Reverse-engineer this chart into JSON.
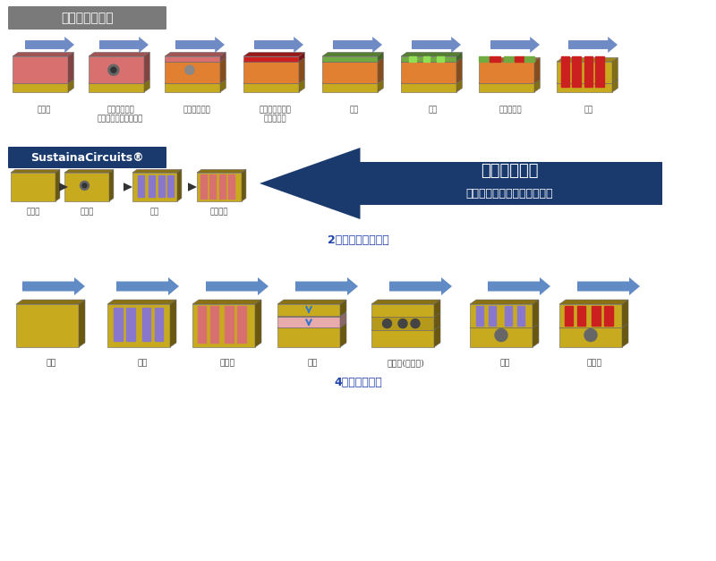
{
  "title_traditional": "既存の基板製法",
  "title_2layer": "2層基板の製法比較",
  "title_4layer": "4層基板の製法",
  "sustaina_label": "SustainaCircuits®",
  "short_process_line1": "短いプロセス",
  "short_process_line2": "工程や材料、設備を大幅削減",
  "traditional_steps": [
    "穴あけ",
    "導電下地形成\n（無電解銅めっき等）",
    "電解銅めっき",
    "ドライフィルム\nラミネート",
    "露光",
    "現像",
    "エッチング",
    "剥離"
  ],
  "sustaina_steps_2layer": [
    "穴あけ",
    "印刷",
    "銅めっき"
  ],
  "steps_4layer": [
    "基材",
    "印刷",
    "めっき",
    "積層",
    "ドリル(穴あけ)",
    "印刷",
    "めっき"
  ],
  "bg_color": "#ffffff",
  "title_bg_color": "#7a7a7a",
  "title_text_color": "#ffffff",
  "sustaina_bg_color": "#1a3a6e",
  "big_arrow_color": "#1a3a6e",
  "step_label_color": "#444444",
  "title_2layer_color": "#2244aa",
  "title_4layer_color": "#2244aa",
  "arrow_blue": "#3a6fbb",
  "yellow": "#c8aa1e",
  "yellow_dark": "#8a7214",
  "yellow_darker": "#6b5810",
  "pink": "#d97070",
  "pink_dark": "#983030",
  "orange": "#e08030",
  "orange_dark": "#a05010",
  "red": "#cc2020",
  "red_dark": "#881010",
  "green": "#70aa40",
  "green_dark": "#407020",
  "purple": "#8877cc",
  "purple_dark": "#554488"
}
